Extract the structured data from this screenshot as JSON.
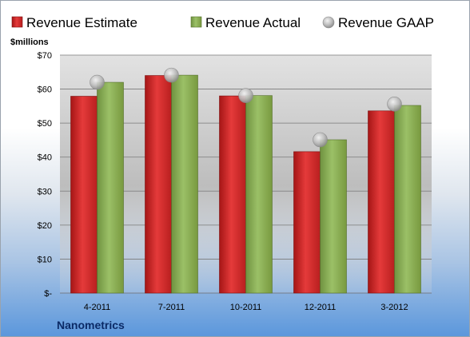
{
  "chart_data": {
    "type": "bar",
    "title": "",
    "unit_label": "$millions",
    "company": "Nanometrics",
    "categories": [
      "4-2011",
      "7-2011",
      "10-2011",
      "12-2011",
      "3-2012"
    ],
    "series": [
      {
        "name": "Revenue Estimate",
        "kind": "bar",
        "color": "#d92b2b",
        "values": [
          57.9,
          64.0,
          58.0,
          41.6,
          53.6
        ]
      },
      {
        "name": "Revenue Actual",
        "kind": "bar",
        "color": "#8cb159",
        "values": [
          62.0,
          64.1,
          58.1,
          45.1,
          55.2
        ]
      },
      {
        "name": "Revenue GAAP",
        "kind": "marker",
        "color": "#b3b3b3",
        "values": [
          62.0,
          64.1,
          58.1,
          45.1,
          55.6
        ]
      }
    ],
    "ylim": [
      0,
      70
    ],
    "yticks": [
      0,
      10,
      20,
      30,
      40,
      50,
      60,
      70
    ],
    "ytick_labels": [
      "$-",
      "$10",
      "$20",
      "$30",
      "$40",
      "$50",
      "$60",
      "$70"
    ],
    "grid": true,
    "legend_position": "top"
  }
}
